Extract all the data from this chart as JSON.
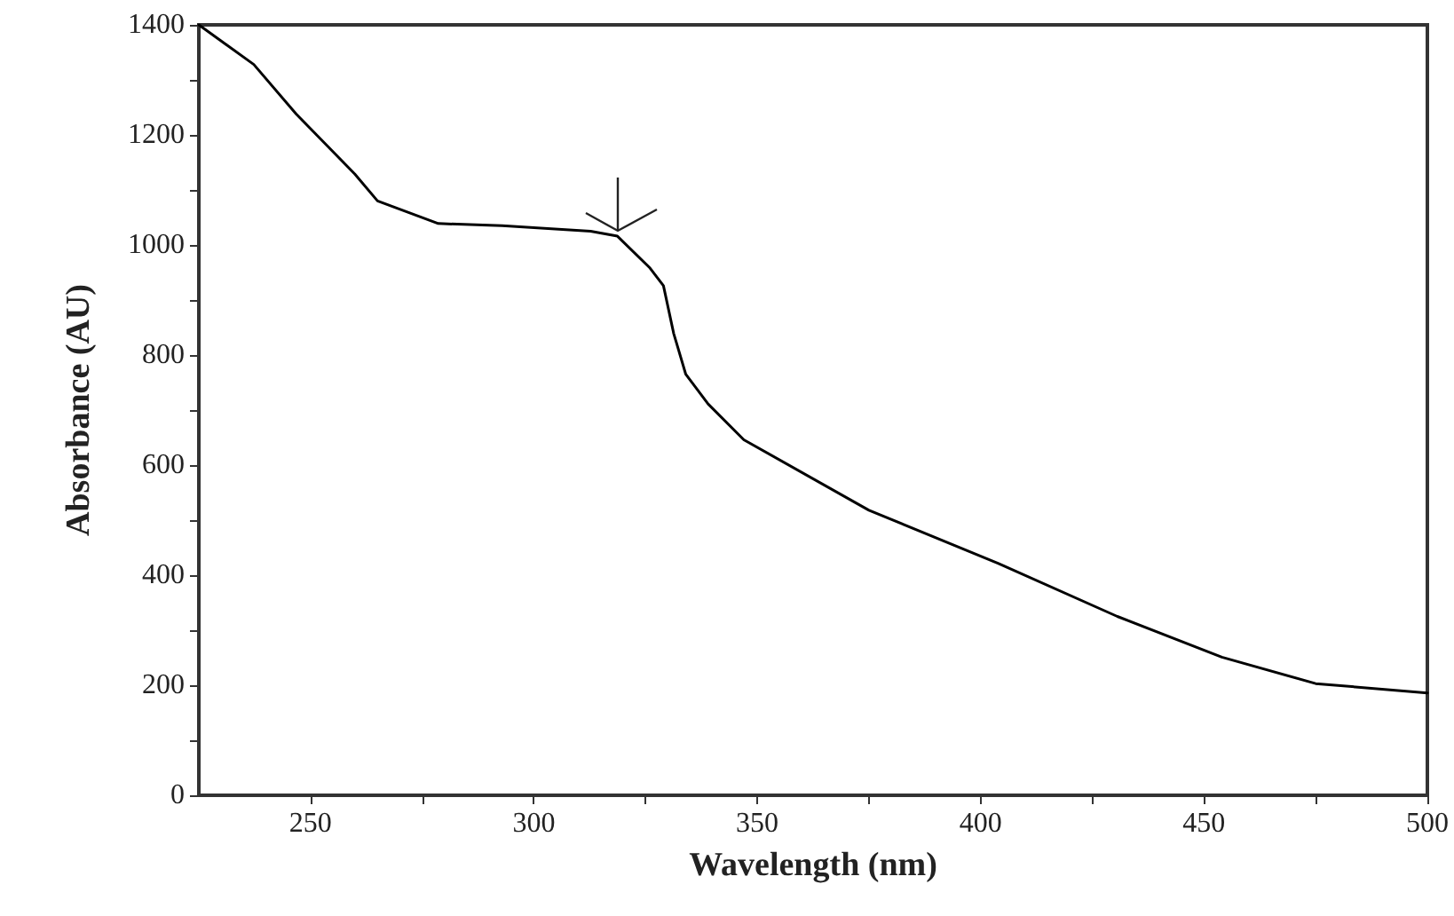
{
  "chart_data": {
    "type": "line",
    "xlabel": "Wavelength (nm)",
    "ylabel": "Absorbance (AU)",
    "x": [
      225,
      237.3,
      246.8,
      259.9,
      265,
      278.6,
      292.9,
      312.7,
      318.7,
      326,
      329,
      331.3,
      334,
      339,
      347,
      375,
      404,
      430.6,
      454,
      475,
      500
    ],
    "series": [
      {
        "color": "#000000",
        "values": [
          1400,
          1328,
          1238,
          1129,
          1080,
          1039,
          1035,
          1025,
          1016,
          958,
          926,
          839,
          765,
          711,
          646,
          518,
          421,
          325,
          251,
          203,
          186
        ]
      }
    ],
    "xlim": [
      225,
      500
    ],
    "ylim": [
      0,
      1400
    ],
    "xticks": [
      250,
      {
        "value": 275,
        "label": null
      },
      300,
      {
        "value": 325,
        "label": null
      },
      350,
      {
        "value": 375,
        "label": null
      },
      400,
      {
        "value": 425,
        "label": null
      },
      450,
      {
        "value": 475,
        "label": null
      },
      500
    ],
    "yticks": [
      0,
      {
        "value": 100,
        "label": null
      },
      200,
      {
        "value": 300,
        "label": null
      },
      400,
      {
        "value": 500,
        "label": null
      },
      600,
      {
        "value": 700,
        "label": null
      },
      800,
      {
        "value": 900,
        "label": null
      },
      1000,
      {
        "value": 1100,
        "label": null
      },
      1200,
      {
        "value": 1300,
        "label": null
      },
      1400
    ],
    "grid": false,
    "marker": "none",
    "line_style": "solid"
  }
}
